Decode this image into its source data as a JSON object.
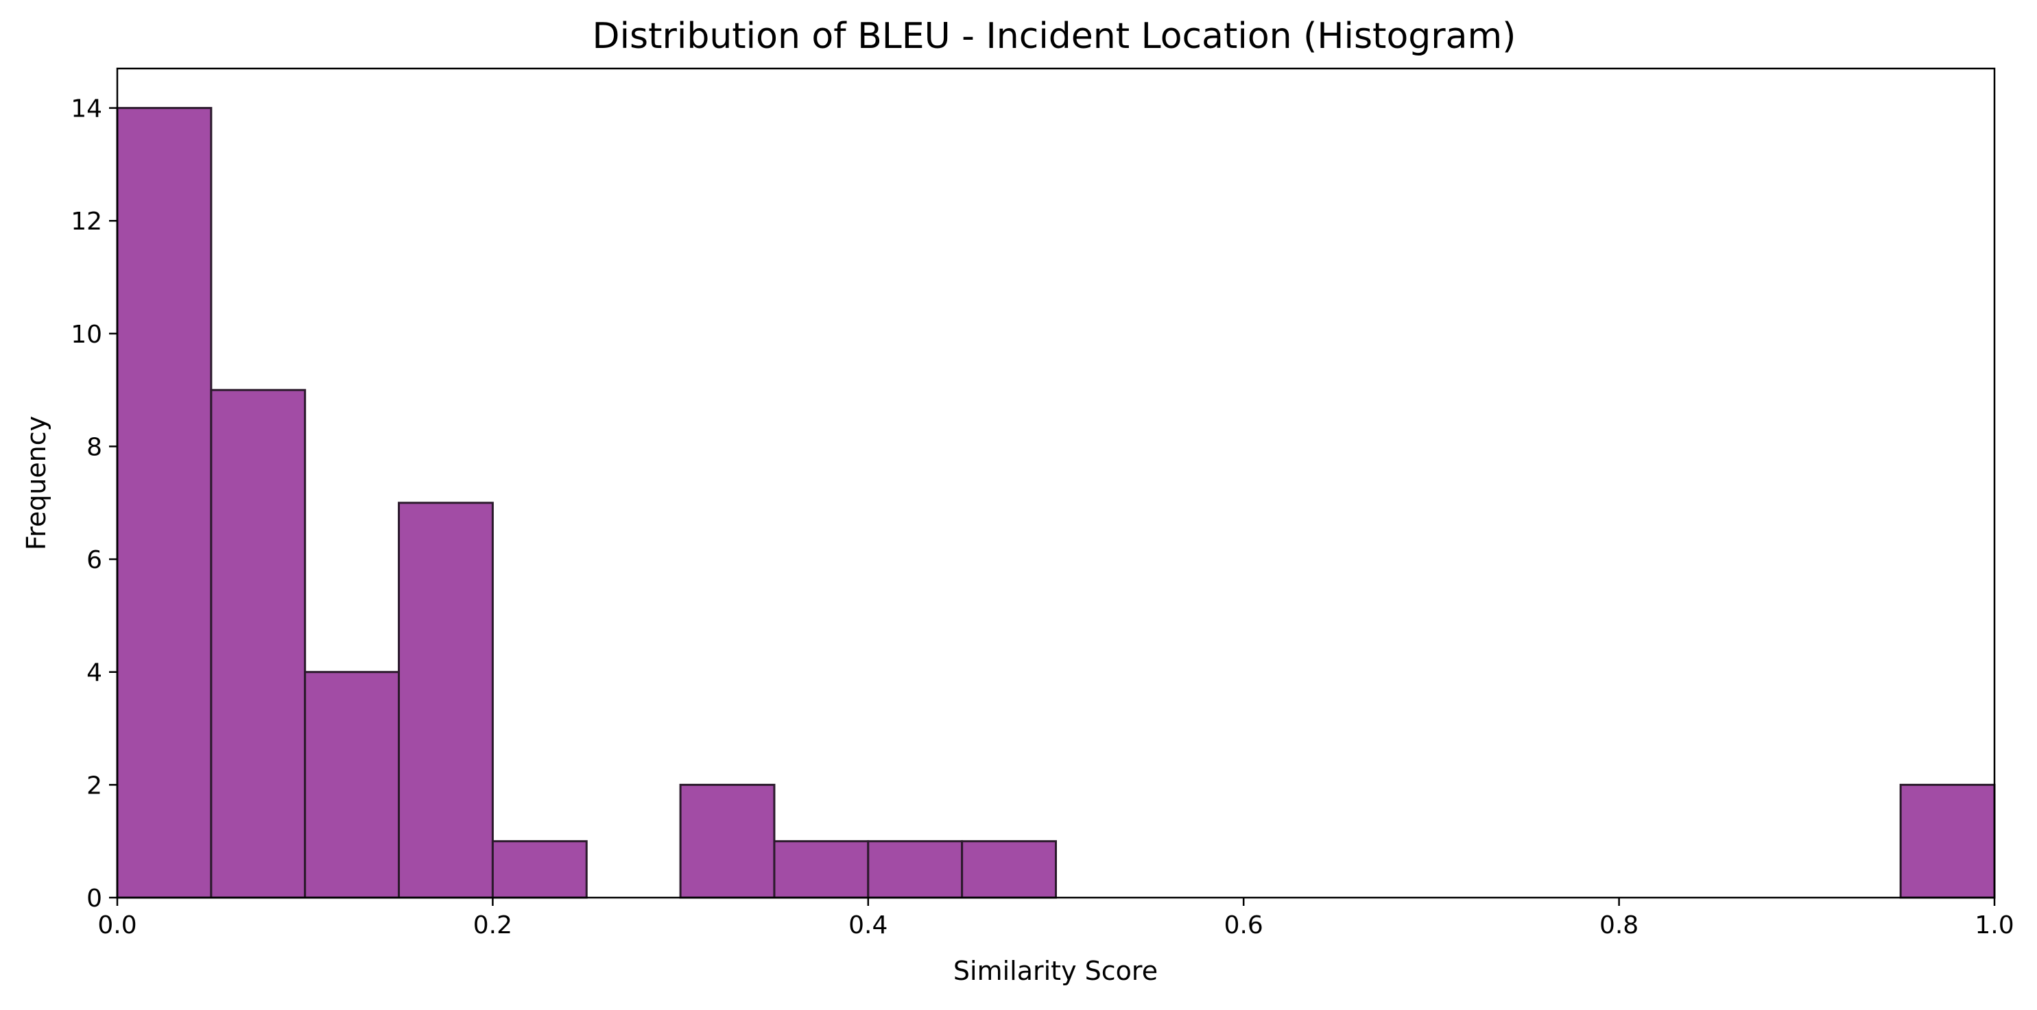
{
  "chart_data": {
    "type": "bar",
    "title": "Distribution of BLEU - Incident Location (Histogram)",
    "xlabel": "Similarity Score",
    "ylabel": "Frequency",
    "xlim": [
      0.0,
      1.0
    ],
    "ylim": [
      0,
      14.7
    ],
    "x_ticks": [
      {
        "value": 0.0,
        "label": "0.0"
      },
      {
        "value": 0.2,
        "label": "0.2"
      },
      {
        "value": 0.4,
        "label": "0.4"
      },
      {
        "value": 0.6,
        "label": "0.6"
      },
      {
        "value": 0.8,
        "label": "0.8"
      },
      {
        "value": 1.0,
        "label": "1.0"
      }
    ],
    "y_ticks": [
      {
        "value": 0,
        "label": "0"
      },
      {
        "value": 2,
        "label": "2"
      },
      {
        "value": 4,
        "label": "4"
      },
      {
        "value": 6,
        "label": "6"
      },
      {
        "value": 8,
        "label": "8"
      },
      {
        "value": 10,
        "label": "10"
      },
      {
        "value": 12,
        "label": "12"
      },
      {
        "value": 14,
        "label": "14"
      }
    ],
    "bins": [
      {
        "start": 0.0,
        "end": 0.05,
        "count": 14
      },
      {
        "start": 0.05,
        "end": 0.1,
        "count": 9
      },
      {
        "start": 0.1,
        "end": 0.15,
        "count": 4
      },
      {
        "start": 0.15,
        "end": 0.2,
        "count": 7
      },
      {
        "start": 0.2,
        "end": 0.25,
        "count": 1
      },
      {
        "start": 0.25,
        "end": 0.3,
        "count": 0
      },
      {
        "start": 0.3,
        "end": 0.35,
        "count": 2
      },
      {
        "start": 0.35,
        "end": 0.4,
        "count": 1
      },
      {
        "start": 0.4,
        "end": 0.45,
        "count": 1
      },
      {
        "start": 0.45,
        "end": 0.5,
        "count": 1
      },
      {
        "start": 0.5,
        "end": 0.55,
        "count": 0
      },
      {
        "start": 0.55,
        "end": 0.6,
        "count": 0
      },
      {
        "start": 0.6,
        "end": 0.65,
        "count": 0
      },
      {
        "start": 0.65,
        "end": 0.7,
        "count": 0
      },
      {
        "start": 0.7,
        "end": 0.75,
        "count": 0
      },
      {
        "start": 0.75,
        "end": 0.8,
        "count": 0
      },
      {
        "start": 0.8,
        "end": 0.85,
        "count": 0
      },
      {
        "start": 0.85,
        "end": 0.9,
        "count": 0
      },
      {
        "start": 0.9,
        "end": 0.95,
        "count": 0
      },
      {
        "start": 0.95,
        "end": 1.0,
        "count": 2
      }
    ],
    "bar_color": "#a24ca5",
    "bar_edge_color": "#2b1a2c",
    "grid": false,
    "legend": "none"
  }
}
